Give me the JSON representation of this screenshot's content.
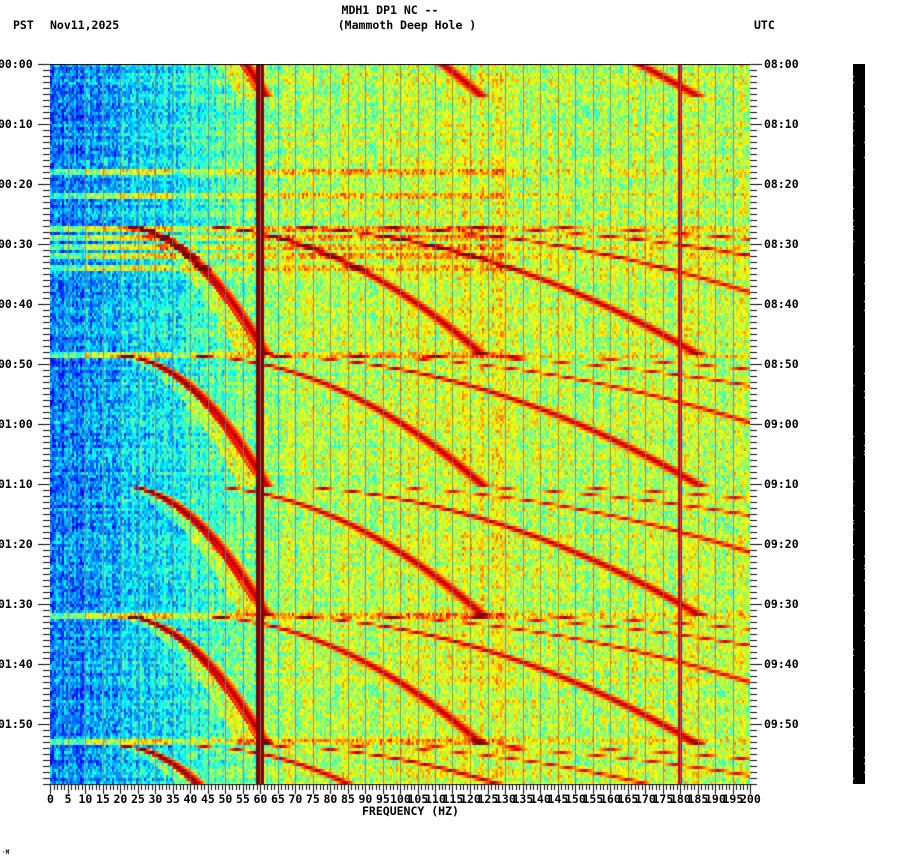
{
  "header": {
    "station_line": "MDH1 DP1 NC --",
    "site_name": "(Mammoth Deep Hole )",
    "left_timezone": "PST",
    "date": "Nov11,2025",
    "right_timezone": "UTC"
  },
  "footer_mark": "·M",
  "chart_data": {
    "type": "heatmap",
    "title": "MDH1 DP1 NC -- (Mammoth Deep Hole )",
    "xlabel": "FREQUENCY (HZ)",
    "ylabel_left": "PST",
    "ylabel_right": "UTC",
    "xlim": [
      0,
      200
    ],
    "x_ticks": [
      0,
      5,
      10,
      15,
      20,
      25,
      30,
      35,
      40,
      45,
      50,
      55,
      60,
      65,
      70,
      75,
      80,
      85,
      90,
      95,
      100,
      105,
      110,
      115,
      120,
      125,
      130,
      135,
      140,
      145,
      150,
      155,
      160,
      165,
      170,
      175,
      180,
      185,
      190,
      195,
      200
    ],
    "y_minutes_range": [
      0,
      120
    ],
    "y_ticks_left": [
      "00:00",
      "00:10",
      "00:20",
      "00:30",
      "00:40",
      "00:50",
      "01:00",
      "01:10",
      "01:20",
      "01:30",
      "01:40",
      "01:50"
    ],
    "y_ticks_right": [
      "08:00",
      "08:10",
      "08:20",
      "08:30",
      "08:40",
      "08:50",
      "09:00",
      "09:10",
      "09:20",
      "09:30",
      "09:40",
      "09:50"
    ],
    "y_minor_tick_minutes": 1,
    "x_gridlines_hz": 5,
    "colormap": "jet",
    "persistent_lines_hz": [
      60,
      180
    ],
    "sweep_start_minutes": [
      -16,
      27,
      48.7,
      70.3,
      92,
      113.7
    ],
    "sweep_period_minutes": 21.7,
    "sweep_fundamental_start_hz": 20,
    "sweep_fundamental_end_hz": 62,
    "broadband_bursts_minutes": [
      18,
      22,
      27.5,
      29,
      30.5,
      32,
      34,
      48.5,
      92,
      113
    ]
  }
}
